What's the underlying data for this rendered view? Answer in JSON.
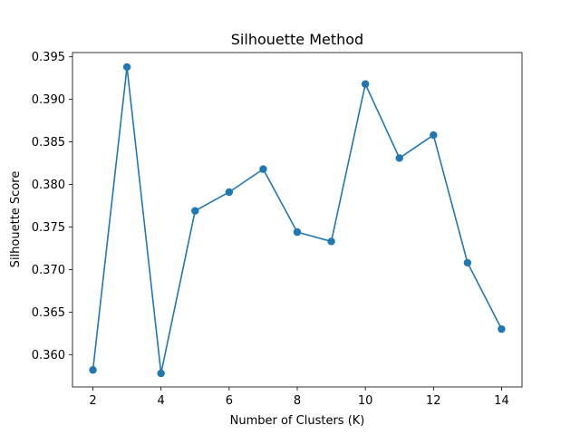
{
  "chart_data": {
    "type": "line",
    "title": "Silhouette Method",
    "xlabel": "Number of Clusters (K)",
    "ylabel": "Silhouette Score",
    "xlim": [
      1.4,
      14.6
    ],
    "ylim": [
      0.3562,
      0.3955
    ],
    "xticks": [
      2,
      4,
      6,
      8,
      10,
      12,
      14
    ],
    "xtick_labels": [
      "2",
      "4",
      "6",
      "8",
      "10",
      "12",
      "14"
    ],
    "yticks": [
      0.36,
      0.365,
      0.37,
      0.375,
      0.38,
      0.385,
      0.39,
      0.395
    ],
    "ytick_labels": [
      "0.360",
      "0.365",
      "0.370",
      "0.375",
      "0.380",
      "0.385",
      "0.390",
      "0.395"
    ],
    "grid": false,
    "series": [
      {
        "color": "#1f77b4",
        "marker": "circle",
        "x": [
          2,
          3,
          4,
          5,
          6,
          7,
          8,
          9,
          10,
          11,
          12,
          13,
          14
        ],
        "y": [
          0.3582,
          0.3938,
          0.3578,
          0.3769,
          0.3791,
          0.3818,
          0.3744,
          0.3733,
          0.3918,
          0.3831,
          0.3858,
          0.3708,
          0.363
        ]
      }
    ]
  }
}
